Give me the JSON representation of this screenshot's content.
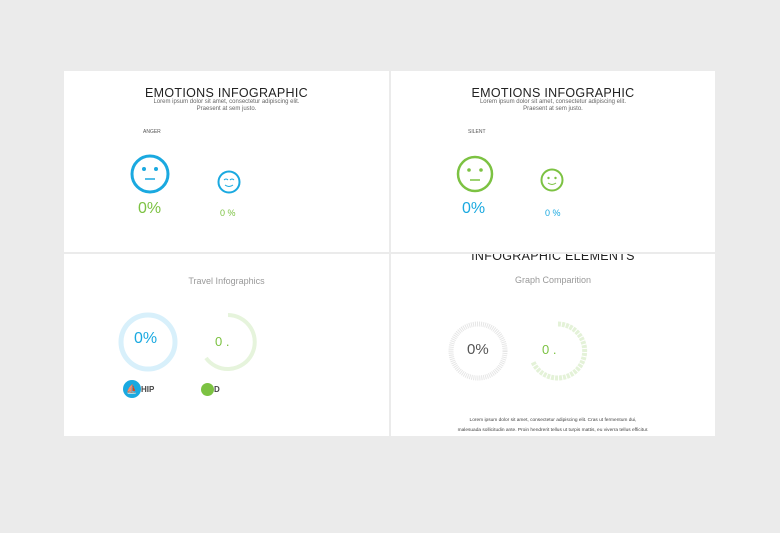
{
  "slides": [
    {
      "title": "EMOTIONS INFOGRAPHIC",
      "subtitle": [
        "Lorem ipsum dolor sit amet, consectetur adipiscing elit.",
        "Praesent at sem justo."
      ],
      "label": "ANGER",
      "values": [
        "0%",
        "0 %"
      ],
      "face_color": "#1aa9e0",
      "value_color": "#7cc242"
    },
    {
      "title": "EMOTIONS INFOGRAPHIC",
      "subtitle": [
        "Lorem ipsum dolor sit amet, consectetur adipiscing elit.",
        "Praesent at sem justo."
      ],
      "label": "SILENT",
      "values": [
        "0%",
        "0 %"
      ],
      "face_color": "#7cc242",
      "value_color": "#1aa9e0"
    },
    {
      "title": "",
      "heading": "Travel Infographics",
      "values": [
        "0%",
        "0 ."
      ],
      "items": [
        "HIP",
        "D"
      ],
      "colors": [
        "#1aa9e0",
        "#7cc242"
      ]
    },
    {
      "title": "INFOGRAPHIC ELEMENTS",
      "heading": "Graph Comparition",
      "values": [
        "0%",
        "0 ."
      ],
      "footer": [
        "Lorem ipsum dolor sit amet, consectetur adipiscing elit. Cras ut fermentum dui,",
        "malesuada sollicitudin ante. Proin hendrerit tellus ut turpis mattis, eu viverra tellus efficitur."
      ]
    }
  ]
}
